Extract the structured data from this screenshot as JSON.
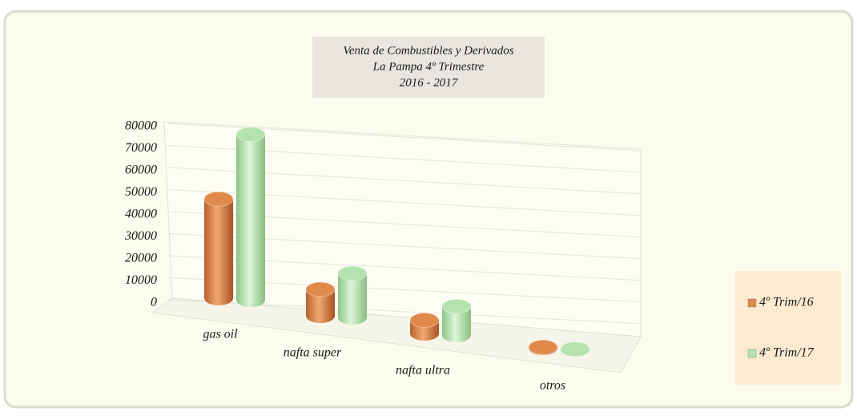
{
  "chart_data": {
    "type": "bar3d",
    "title": [
      "Venta de Combustibles y Derivados",
      "La Pampa 4º Trimestre",
      "2016 - 2017"
    ],
    "categories": [
      "gas oil",
      "nafta super",
      "nafta ultra",
      "otros"
    ],
    "series": [
      {
        "name": "4º Trim/16",
        "color": "#e0894a",
        "values": [
          45000,
          12000,
          6000,
          300
        ]
      },
      {
        "name": "4º Trim/17",
        "color": "#b5e3ad",
        "values": [
          75000,
          20000,
          13000,
          200
        ]
      }
    ],
    "ylim": [
      0,
      80000
    ],
    "yticks": [
      0,
      10000,
      20000,
      30000,
      40000,
      50000,
      60000,
      70000,
      80000
    ],
    "grid": true,
    "legend": "right"
  }
}
